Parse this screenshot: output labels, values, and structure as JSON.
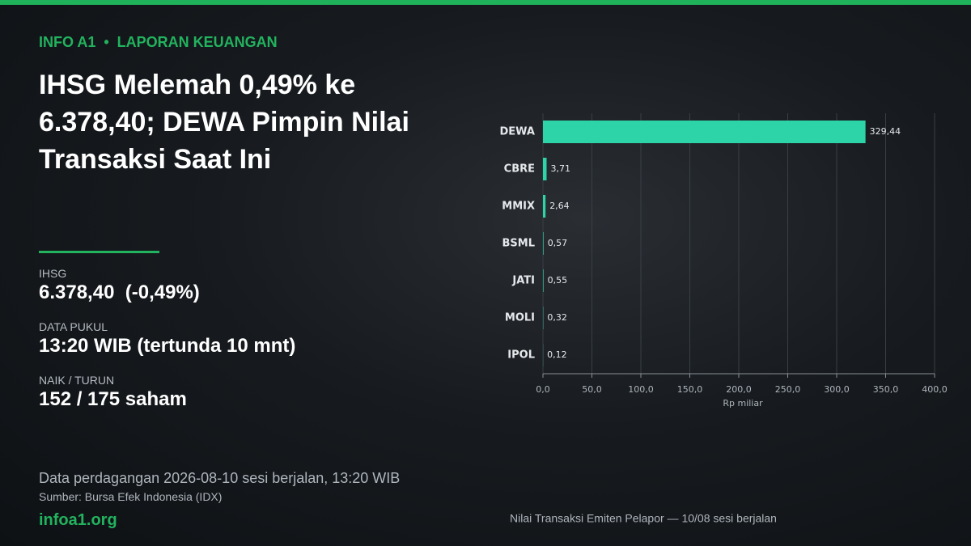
{
  "brand": "INFO A1",
  "category": "LAPORAN KEUANGAN",
  "headline": "IHSG Melemah 0,49% ke 6.378,40; DEWA Pimpin Nilai Transaksi Saat Ini",
  "stats": [
    {
      "label": "IHSG",
      "value": "6.378,40  (-0,49%)"
    },
    {
      "label": "DATA PUKUL",
      "value": "13:20 WIB (tertunda 10 mnt)"
    },
    {
      "label": "NAIK / TURUN",
      "value": "152 / 175 saham"
    }
  ],
  "footer": {
    "note": "Data perdagangan 2026-08-10 sesi berjalan, 13:20 WIB",
    "source": "Sumber: Bursa Efek Indonesia (IDX)",
    "site": "infoa1.org"
  },
  "chart_data": {
    "type": "bar",
    "orientation": "horizontal",
    "caption": "Nilai Transaksi Emiten Pelapor — 10/08 sesi berjalan",
    "xlabel": "Rp miliar",
    "categories": [
      "DEWA",
      "CBRE",
      "MMIX",
      "BSML",
      "JATI",
      "MOLI",
      "IPOL"
    ],
    "values": [
      329.44,
      3.71,
      2.64,
      0.57,
      0.55,
      0.32,
      0.12
    ],
    "value_labels": [
      "329,44",
      "3,71",
      "2,64",
      "0,57",
      "0,55",
      "0,32",
      "0,12"
    ],
    "color": "#2dd4a7",
    "xlim": [
      0,
      400
    ],
    "xticks": [
      {
        "value": 0,
        "label": "0,0"
      },
      {
        "value": 50,
        "label": "50,0"
      },
      {
        "value": 100,
        "label": "100,0"
      },
      {
        "value": 150,
        "label": "150,0"
      },
      {
        "value": 200,
        "label": "200,0"
      },
      {
        "value": 250,
        "label": "250,0"
      },
      {
        "value": 300,
        "label": "300,0"
      },
      {
        "value": 350,
        "label": "350,0"
      },
      {
        "value": 400,
        "label": "400,0"
      }
    ],
    "grid": true
  }
}
